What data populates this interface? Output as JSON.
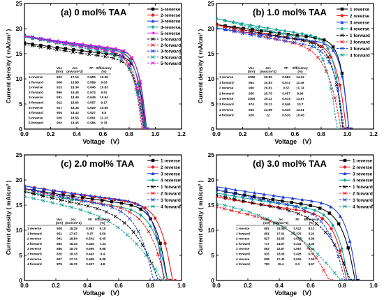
{
  "chart_data": [
    {
      "panel": "(a) 0 mol% TAA",
      "type": "line",
      "xlabel": "Voltage （V）",
      "ylabel": "Current density ( mA/cm² )",
      "xlim": [
        0.0,
        1.2
      ],
      "ylim": [
        0,
        25
      ],
      "xticks": [
        "0.0",
        "0.2",
        "0.4",
        "0.6",
        "0.8",
        "1.0",
        "1.2"
      ],
      "yticks": [
        "0",
        "5",
        "10",
        "15",
        "20",
        "25"
      ],
      "series": [
        {
          "name": "1-reverse",
          "color": "#000000",
          "dash": false,
          "marker": "square",
          "voc": 0.922,
          "jsc": 17.14,
          "ff": 0.655
        },
        {
          "name": "2-reverse",
          "color": "#e8191d",
          "dash": false,
          "marker": "circle",
          "voc": 0.913,
          "jsc": 18.34,
          "ff": 0.646
        },
        {
          "name": "3-reverse",
          "color": "#1f3fd6",
          "dash": false,
          "marker": "triangle",
          "voc": 0.931,
          "jsc": 18.49,
          "ff": 0.649
        },
        {
          "name": "4-reverse",
          "color": "#12a394",
          "dash": false,
          "marker": "diamond",
          "voc": 0.917,
          "jsc": 18.36,
          "ff": 0.629
        },
        {
          "name": "5-reverse",
          "color": "#e01be0",
          "dash": false,
          "marker": "triangle-left",
          "voc": 0.926,
          "jsc": 18.55,
          "ff": 0.661
        },
        {
          "name": "1-forward",
          "color": "#000000",
          "dash": true,
          "marker": "x",
          "voc": 0.908,
          "jsc": 16.88,
          "ff": 0.589
        },
        {
          "name": "2-forward",
          "color": "#e8191d",
          "dash": true,
          "marker": "x",
          "voc": 0.896,
          "jsc": 18.48,
          "ff": 0.574
        },
        {
          "name": "3-forward",
          "color": "#1f3fd6",
          "dash": true,
          "marker": "x",
          "voc": 0.912,
          "jsc": 18.66,
          "ff": 0.557
        },
        {
          "name": "4-forward",
          "color": "#12a394",
          "dash": true,
          "marker": "x",
          "voc": 0.905,
          "jsc": 18.43,
          "ff": 0.527
        },
        {
          "name": "5-forward",
          "color": "#e01be0",
          "dash": true,
          "marker": "x",
          "voc": 0.904,
          "jsc": 18.45,
          "ff": 0.586
        }
      ],
      "table": {
        "headers": [
          "",
          "Voc\n(mV)",
          "Jsc\n(mA/cm^2)",
          "FF",
          "Efficiency\n(%)"
        ],
        "rows": [
          [
            "1-reverse",
            "922",
            "17.14",
            "0.655",
            "10.35"
          ],
          [
            "1-forward",
            "908",
            "16.88",
            "0.589",
            "9.03"
          ],
          [
            "2-reverse",
            "913",
            "18.34",
            "0.646",
            "10.83"
          ],
          [
            "2-forward",
            "896",
            "18.48",
            "0.574",
            "9.51"
          ],
          [
            "3-reverse",
            "931",
            "18.49",
            "0.649",
            "10.94"
          ],
          [
            "3-forward",
            "912",
            "18.66",
            "0.557",
            "9.17"
          ],
          [
            "4-reverse",
            "917",
            "18.36",
            "0.629",
            "10.59"
          ],
          [
            "4-forward",
            "905",
            "18.43",
            "0.527",
            "8.8"
          ],
          [
            "5-reverse",
            "926",
            "18.55",
            "0.661",
            "11.23"
          ],
          [
            "5-forward",
            "904",
            "18.45",
            "0.586",
            "9.78"
          ]
        ]
      }
    },
    {
      "panel": "(b) 1.0 mol% TAA",
      "type": "line",
      "xlabel": "Voltage （V）",
      "ylabel": "Current density ( mA/cm² )",
      "xlim": [
        0.0,
        1.2
      ],
      "ylim": [
        0,
        25
      ],
      "xticks": [
        "0.0",
        "0.2",
        "0.4",
        "0.6",
        "0.8",
        "1.0",
        "1.2"
      ],
      "yticks": [
        "0",
        "5",
        "10",
        "15",
        "20",
        "25"
      ],
      "series": [
        {
          "name": "1 reverse",
          "color": "#000000",
          "dash": false,
          "marker": "square",
          "voc": 1.008,
          "jsc": 20.82,
          "ff": 0.683
        },
        {
          "name": "2 reverse",
          "color": "#e8191d",
          "dash": false,
          "marker": "circle",
          "voc": 0.99,
          "jsc": 20.81,
          "ff": 0.57
        },
        {
          "name": "3 reverse",
          "color": "#1f3fd6",
          "dash": false,
          "marker": "triangle",
          "voc": 1.009,
          "jsc": 20.11,
          "ff": 0.674
        },
        {
          "name": "4 reverse",
          "color": "#12a394",
          "dash": false,
          "marker": "diamond",
          "voc": 0.963,
          "jsc": 21.98,
          "ff": 0.615
        },
        {
          "name": "1 forward",
          "color": "#000000",
          "dash": true,
          "marker": "x",
          "voc": 0.964,
          "jsc": 20.83,
          "ff": 0.572
        },
        {
          "name": "2 forward",
          "color": "#e8191d",
          "dash": true,
          "marker": "x",
          "voc": 0.95,
          "jsc": 20.75,
          "ff": 0.457
        },
        {
          "name": "3 forward",
          "color": "#1f3fd6",
          "dash": true,
          "marker": "x",
          "voc": 0.974,
          "jsc": 20.12,
          "ff": 0.546
        },
        {
          "name": "4 forward",
          "color": "#12a394",
          "dash": true,
          "marker": "x",
          "voc": 0.92,
          "jsc": 22.0,
          "ff": 0.516
        }
      ],
      "table": {
        "headers": [
          "",
          "Voc\n(mV)",
          "Jsc\n(mA/cm^2)",
          "FF",
          "Efficiency\n(%)"
        ],
        "rows": [
          [
            "1 reverse",
            "1008",
            "20.82",
            "0.683",
            "14.32"
          ],
          [
            "1 forward",
            "964",
            "20.83",
            "0.572",
            "11.49"
          ],
          [
            "2 reverse",
            "990",
            "20.81",
            "0.57",
            "11.74"
          ],
          [
            "2 forward",
            "950",
            "20.75",
            "0.457",
            "8.99"
          ],
          [
            "3 reverse",
            "1009",
            "20.11",
            "0.674",
            "13.67"
          ],
          [
            "3 forward",
            "974",
            "20.12",
            "0.546",
            "10.7"
          ],
          [
            "4 reverse",
            "963",
            "21.98",
            "0.615",
            "13.01"
          ],
          [
            "4 forward",
            "920",
            "22",
            "0.516",
            "10.45"
          ]
        ]
      }
    },
    {
      "panel": "(c) 2.0 mol% TAA",
      "type": "line",
      "xlabel": "Voltage （V）",
      "ylabel": "Current density ( mA/cm² )",
      "xlim": [
        0.0,
        1.0
      ],
      "ylim": [
        0,
        25
      ],
      "xticks": [
        "0.0",
        "0.2",
        "0.4",
        "0.6",
        "0.8",
        "1.0"
      ],
      "yticks": [
        "0",
        "5",
        "10",
        "15",
        "20",
        "25"
      ],
      "series": [
        {
          "name": "1 reverse",
          "color": "#000000",
          "dash": false,
          "marker": "square",
          "voc": 0.908,
          "jsc": 18.28,
          "ff": 0.553
        },
        {
          "name": "2 reverse",
          "color": "#e8191d",
          "dash": false,
          "marker": "circle",
          "voc": 0.941,
          "jsc": 18.84,
          "ff": 0.541
        },
        {
          "name": "3 reverse",
          "color": "#1f3fd6",
          "dash": false,
          "marker": "triangle",
          "voc": 0.886,
          "jsc": 18.79,
          "ff": 0.599
        },
        {
          "name": "4 reverse",
          "color": "#12a394",
          "dash": false,
          "marker": "diamond",
          "voc": 0.907,
          "jsc": 17.74,
          "ff": 0.499
        },
        {
          "name": "1 forward",
          "color": "#000000",
          "dash": true,
          "marker": "x",
          "voc": 0.851,
          "jsc": 17.67,
          "ff": 0.37
        },
        {
          "name": "2 forward",
          "color": "#e8191d",
          "dash": true,
          "marker": "x",
          "voc": 0.894,
          "jsc": 18.15,
          "ff": 0.446
        },
        {
          "name": "3 forward",
          "color": "#1f3fd6",
          "dash": true,
          "marker": "x",
          "voc": 0.82,
          "jsc": 18.33,
          "ff": 0.443
        },
        {
          "name": "4 forward",
          "color": "#12a394",
          "dash": true,
          "marker": "x",
          "voc": 0.875,
          "jsc": 16.76,
          "ff": 0.327
        }
      ],
      "table": {
        "headers": [
          "",
          "Voc\n(mV)",
          "Jsc\n(mA/cm^2)",
          "FF",
          "Efficiency\n(%)"
        ],
        "rows": [
          [
            "1 reverse",
            "908",
            "18.28",
            "0.553",
            "9.18"
          ],
          [
            "1 forward",
            "851",
            "17.67",
            "0.37",
            "5.56"
          ],
          [
            "2 reverse",
            "941",
            "18.84",
            "0.541",
            "9.45"
          ],
          [
            "2 forward",
            "894",
            "18.15",
            "0.446",
            "7.24"
          ],
          [
            "3 reverse",
            "886",
            "18.79",
            "0.599",
            "9.98"
          ],
          [
            "3 forward",
            "820",
            "18.33",
            "0.443",
            "6.4"
          ],
          [
            "4 reverse",
            "907",
            "17.74",
            "0.499",
            "8.39"
          ],
          [
            "4 forward",
            "875",
            "16.76",
            "0.327",
            "4.8"
          ]
        ]
      }
    },
    {
      "panel": "(d) 3.0 mol% TAA",
      "type": "line",
      "xlabel": "Voltage （V）",
      "ylabel": "Current density ( mA/cm² )",
      "xlim": [
        0.0,
        1.0
      ],
      "ylim": [
        0,
        25
      ],
      "xticks": [
        "0.0",
        "0.2",
        "0.4",
        "0.6",
        "0.8",
        "1.0"
      ],
      "yticks": [
        "0",
        "5",
        "10",
        "15",
        "20",
        "25"
      ],
      "series": [
        {
          "name": "1 reverse",
          "color": "#000000",
          "dash": false,
          "marker": "square",
          "voc": 0.881,
          "jsc": 18.01,
          "ff": 0.512
        },
        {
          "name": "2 reverse",
          "color": "#e8191d",
          "dash": false,
          "marker": "circle",
          "voc": 0.827,
          "jsc": 16.65,
          "ff": 0.507
        },
        {
          "name": "3 reverse",
          "color": "#1f3fd6",
          "dash": false,
          "marker": "triangle",
          "voc": 0.892,
          "jsc": 18.67,
          "ff": 0.567
        },
        {
          "name": "4 reverse",
          "color": "#12a394",
          "dash": false,
          "marker": "diamond",
          "voc": 0.838,
          "jsc": 17.43,
          "ff": 0.516
        },
        {
          "name": "1 forward",
          "color": "#000000",
          "dash": true,
          "marker": "x",
          "voc": 0.851,
          "jsc": 17.01,
          "ff": 0.379
        },
        {
          "name": "2 forward",
          "color": "#e8191d",
          "dash": true,
          "marker": "x",
          "voc": 0.717,
          "jsc": 14.67,
          "ff": 0.331
        },
        {
          "name": "3 forward",
          "color": "#1f3fd6",
          "dash": true,
          "marker": "x",
          "voc": 0.816,
          "jsc": 18.06,
          "ff": 0.428
        },
        {
          "name": "4 forward",
          "color": "#12a394",
          "dash": true,
          "marker": "x",
          "voc": 0.79,
          "jsc": 15.4,
          "ff": 0.3
        }
      ],
      "table": {
        "headers": [
          "",
          "Voc\n(mV)",
          "Jsc\n(mA/cm^2)",
          "FF",
          "Efficiency\n(%)"
        ],
        "rows": [
          [
            "1 reverse",
            "881",
            "18.01",
            "0.512",
            "8.13"
          ],
          [
            "1 forward",
            "851",
            "17.01",
            "0.379",
            "5.23"
          ],
          [
            "2 reverse",
            "827",
            "16.65",
            "0.507",
            "6.98"
          ],
          [
            "2 forward",
            "717",
            "14.67",
            "0.331",
            "3.49"
          ],
          [
            "3 reverse",
            "892",
            "18.67",
            "0.567",
            "9.44"
          ],
          [
            "3 forward",
            "816",
            "18.06",
            "0.428",
            "6.31"
          ],
          [
            "4 reverse",
            "838",
            "17.43",
            "0.516",
            "7.53"
          ],
          [
            "4 forward",
            "790",
            "15.4",
            "0.3",
            "3.67"
          ]
        ]
      }
    }
  ]
}
